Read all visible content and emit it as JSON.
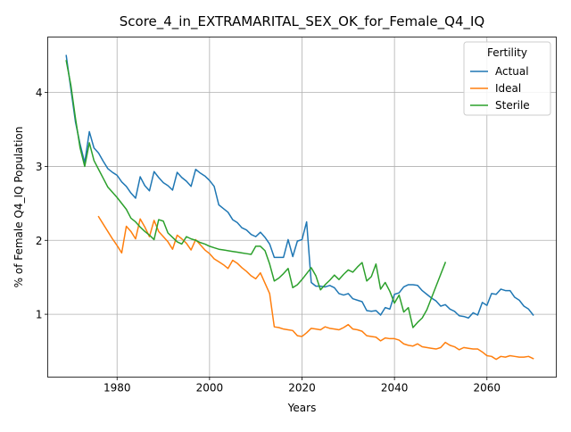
{
  "chart_data": {
    "type": "line",
    "title": "Score_4_in_EXTRAMARITAL_SEX_OK_for_Female_Q4_IQ",
    "xlabel": "Years",
    "ylabel": "% of Female Q4_IQ Population",
    "xlim": [
      1965,
      2075
    ],
    "ylim": [
      0.15,
      4.75
    ],
    "xticks": [
      1980,
      2000,
      2020,
      2040,
      2060
    ],
    "yticks": [
      1,
      2,
      3,
      4
    ],
    "grid": true,
    "legend": {
      "title": "Fertility",
      "placement": "upper right"
    },
    "series": [
      {
        "name": "Actual",
        "color": "#1f77b4",
        "points": [
          [
            1969,
            4.5
          ],
          [
            1970,
            4.05
          ],
          [
            1971,
            3.6
          ],
          [
            1972,
            3.3
          ],
          [
            1973,
            3.05
          ],
          [
            1974,
            3.47
          ],
          [
            1975,
            3.25
          ],
          [
            1976,
            3.18
          ],
          [
            1977,
            3.07
          ],
          [
            1978,
            2.97
          ],
          [
            1979,
            2.92
          ],
          [
            1980,
            2.88
          ],
          [
            1981,
            2.79
          ],
          [
            1982,
            2.73
          ],
          [
            1983,
            2.64
          ],
          [
            1984,
            2.57
          ],
          [
            1985,
            2.86
          ],
          [
            1986,
            2.74
          ],
          [
            1987,
            2.67
          ],
          [
            1988,
            2.93
          ],
          [
            1989,
            2.85
          ],
          [
            1990,
            2.78
          ],
          [
            1991,
            2.74
          ],
          [
            1992,
            2.68
          ],
          [
            1993,
            2.92
          ],
          [
            1994,
            2.85
          ],
          [
            1995,
            2.8
          ],
          [
            1996,
            2.73
          ],
          [
            1997,
            2.96
          ],
          [
            1998,
            2.91
          ],
          [
            1999,
            2.87
          ],
          [
            2000,
            2.81
          ],
          [
            2001,
            2.73
          ],
          [
            2002,
            2.48
          ],
          [
            2003,
            2.43
          ],
          [
            2004,
            2.38
          ],
          [
            2005,
            2.28
          ],
          [
            2006,
            2.24
          ],
          [
            2007,
            2.17
          ],
          [
            2008,
            2.14
          ],
          [
            2009,
            2.08
          ],
          [
            2010,
            2.05
          ],
          [
            2011,
            2.11
          ],
          [
            2012,
            2.04
          ],
          [
            2013,
            1.95
          ],
          [
            2014,
            1.77
          ],
          [
            2015,
            1.77
          ],
          [
            2016,
            1.77
          ],
          [
            2017,
            2.01
          ],
          [
            2018,
            1.78
          ],
          [
            2019,
            1.99
          ],
          [
            2020,
            2.01
          ],
          [
            2021,
            2.25
          ],
          [
            2022,
            1.43
          ],
          [
            2023,
            1.38
          ],
          [
            2024,
            1.38
          ],
          [
            2025,
            1.37
          ],
          [
            2026,
            1.39
          ],
          [
            2027,
            1.36
          ],
          [
            2028,
            1.28
          ],
          [
            2029,
            1.26
          ],
          [
            2030,
            1.28
          ],
          [
            2031,
            1.21
          ],
          [
            2032,
            1.19
          ],
          [
            2033,
            1.17
          ],
          [
            2034,
            1.05
          ],
          [
            2035,
            1.04
          ],
          [
            2036,
            1.05
          ],
          [
            2037,
            0.99
          ],
          [
            2038,
            1.09
          ],
          [
            2039,
            1.07
          ],
          [
            2040,
            1.27
          ],
          [
            2041,
            1.29
          ],
          [
            2042,
            1.37
          ],
          [
            2043,
            1.4
          ],
          [
            2044,
            1.4
          ],
          [
            2045,
            1.39
          ],
          [
            2046,
            1.32
          ],
          [
            2047,
            1.27
          ],
          [
            2048,
            1.22
          ],
          [
            2049,
            1.18
          ],
          [
            2050,
            1.11
          ],
          [
            2051,
            1.13
          ],
          [
            2052,
            1.07
          ],
          [
            2053,
            1.04
          ],
          [
            2054,
            0.98
          ],
          [
            2055,
            0.97
          ],
          [
            2056,
            0.95
          ],
          [
            2057,
            1.02
          ],
          [
            2058,
            0.99
          ],
          [
            2059,
            1.16
          ],
          [
            2060,
            1.12
          ],
          [
            2061,
            1.28
          ],
          [
            2062,
            1.27
          ],
          [
            2063,
            1.34
          ],
          [
            2064,
            1.32
          ],
          [
            2065,
            1.32
          ],
          [
            2066,
            1.23
          ],
          [
            2067,
            1.19
          ],
          [
            2068,
            1.11
          ],
          [
            2069,
            1.07
          ],
          [
            2070,
            0.99
          ]
        ]
      },
      {
        "name": "Ideal",
        "color": "#ff7f0e",
        "points": [
          [
            1976,
            2.32
          ],
          [
            1977,
            2.22
          ],
          [
            1978,
            2.12
          ],
          [
            1979,
            2.02
          ],
          [
            1980,
            1.93
          ],
          [
            1981,
            1.83
          ],
          [
            1982,
            2.19
          ],
          [
            1983,
            2.12
          ],
          [
            1984,
            2.02
          ],
          [
            1985,
            2.29
          ],
          [
            1986,
            2.18
          ],
          [
            1987,
            2.05
          ],
          [
            1988,
            2.27
          ],
          [
            1989,
            2.12
          ],
          [
            1990,
            2.05
          ],
          [
            1991,
            1.98
          ],
          [
            1992,
            1.88
          ],
          [
            1993,
            2.07
          ],
          [
            1994,
            2.02
          ],
          [
            1995,
            1.96
          ],
          [
            1996,
            1.87
          ],
          [
            1997,
            2.01
          ],
          [
            1998,
            1.94
          ],
          [
            1999,
            1.87
          ],
          [
            2000,
            1.82
          ],
          [
            2001,
            1.75
          ],
          [
            2002,
            1.71
          ],
          [
            2003,
            1.67
          ],
          [
            2004,
            1.62
          ],
          [
            2005,
            1.73
          ],
          [
            2006,
            1.69
          ],
          [
            2007,
            1.63
          ],
          [
            2008,
            1.58
          ],
          [
            2009,
            1.52
          ],
          [
            2010,
            1.48
          ],
          [
            2011,
            1.56
          ],
          [
            2012,
            1.42
          ],
          [
            2013,
            1.28
          ],
          [
            2014,
            0.83
          ],
          [
            2015,
            0.82
          ],
          [
            2016,
            0.8
          ],
          [
            2017,
            0.79
          ],
          [
            2018,
            0.78
          ],
          [
            2019,
            0.71
          ],
          [
            2020,
            0.7
          ],
          [
            2021,
            0.75
          ],
          [
            2022,
            0.81
          ],
          [
            2023,
            0.8
          ],
          [
            2024,
            0.79
          ],
          [
            2025,
            0.83
          ],
          [
            2026,
            0.81
          ],
          [
            2027,
            0.8
          ],
          [
            2028,
            0.79
          ],
          [
            2029,
            0.82
          ],
          [
            2030,
            0.86
          ],
          [
            2031,
            0.8
          ],
          [
            2032,
            0.79
          ],
          [
            2033,
            0.77
          ],
          [
            2034,
            0.71
          ],
          [
            2035,
            0.7
          ],
          [
            2036,
            0.69
          ],
          [
            2037,
            0.64
          ],
          [
            2038,
            0.68
          ],
          [
            2039,
            0.67
          ],
          [
            2040,
            0.67
          ],
          [
            2041,
            0.65
          ],
          [
            2042,
            0.6
          ],
          [
            2043,
            0.58
          ],
          [
            2044,
            0.57
          ],
          [
            2045,
            0.6
          ],
          [
            2046,
            0.56
          ],
          [
            2047,
            0.55
          ],
          [
            2048,
            0.54
          ],
          [
            2049,
            0.53
          ],
          [
            2050,
            0.55
          ],
          [
            2051,
            0.62
          ],
          [
            2052,
            0.58
          ],
          [
            2053,
            0.56
          ],
          [
            2054,
            0.52
          ],
          [
            2055,
            0.55
          ],
          [
            2056,
            0.54
          ],
          [
            2057,
            0.53
          ],
          [
            2058,
            0.53
          ],
          [
            2059,
            0.49
          ],
          [
            2060,
            0.44
          ],
          [
            2061,
            0.43
          ],
          [
            2062,
            0.39
          ],
          [
            2063,
            0.43
          ],
          [
            2064,
            0.42
          ],
          [
            2065,
            0.44
          ],
          [
            2066,
            0.43
          ],
          [
            2067,
            0.42
          ],
          [
            2068,
            0.42
          ],
          [
            2069,
            0.43
          ],
          [
            2070,
            0.4
          ]
        ]
      },
      {
        "name": "Sterile",
        "color": "#2ca02c",
        "points": [
          [
            1969,
            4.43
          ],
          [
            1970,
            4.1
          ],
          [
            1971,
            3.65
          ],
          [
            1972,
            3.25
          ],
          [
            1973,
            3.0
          ],
          [
            1974,
            3.32
          ],
          [
            1975,
            3.08
          ],
          [
            1976,
            2.96
          ],
          [
            1977,
            2.84
          ],
          [
            1978,
            2.72
          ],
          [
            1979,
            2.65
          ],
          [
            1980,
            2.58
          ],
          [
            1981,
            2.5
          ],
          [
            1982,
            2.42
          ],
          [
            1983,
            2.3
          ],
          [
            1984,
            2.25
          ],
          [
            1985,
            2.18
          ],
          [
            1986,
            2.12
          ],
          [
            1987,
            2.07
          ],
          [
            1988,
            2.01
          ],
          [
            1989,
            2.28
          ],
          [
            1990,
            2.26
          ],
          [
            1991,
            2.1
          ],
          [
            1992,
            2.04
          ],
          [
            1993,
            1.98
          ],
          [
            1994,
            1.95
          ],
          [
            1995,
            2.05
          ],
          [
            1996,
            2.02
          ],
          [
            1997,
            2.0
          ],
          [
            1998,
            1.97
          ],
          [
            1999,
            1.95
          ],
          [
            2000,
            1.92
          ],
          [
            2001,
            1.9
          ],
          [
            2002,
            1.88
          ],
          [
            2003,
            1.87
          ],
          [
            2004,
            1.86
          ],
          [
            2005,
            1.85
          ],
          [
            2006,
            1.84
          ],
          [
            2007,
            1.83
          ],
          [
            2008,
            1.82
          ],
          [
            2009,
            1.81
          ],
          [
            2010,
            1.92
          ],
          [
            2011,
            1.92
          ],
          [
            2012,
            1.86
          ],
          [
            2013,
            1.68
          ],
          [
            2014,
            1.45
          ],
          [
            2015,
            1.49
          ],
          [
            2016,
            1.55
          ],
          [
            2017,
            1.62
          ],
          [
            2018,
            1.36
          ],
          [
            2019,
            1.4
          ],
          [
            2020,
            1.47
          ],
          [
            2021,
            1.55
          ],
          [
            2022,
            1.63
          ],
          [
            2023,
            1.52
          ],
          [
            2024,
            1.33
          ],
          [
            2025,
            1.4
          ],
          [
            2026,
            1.46
          ],
          [
            2027,
            1.53
          ],
          [
            2028,
            1.47
          ],
          [
            2029,
            1.54
          ],
          [
            2030,
            1.6
          ],
          [
            2031,
            1.57
          ],
          [
            2032,
            1.64
          ],
          [
            2033,
            1.7
          ],
          [
            2034,
            1.45
          ],
          [
            2035,
            1.51
          ],
          [
            2036,
            1.68
          ],
          [
            2037,
            1.34
          ],
          [
            2038,
            1.43
          ],
          [
            2039,
            1.31
          ],
          [
            2040,
            1.15
          ],
          [
            2041,
            1.26
          ],
          [
            2042,
            1.03
          ],
          [
            2043,
            1.09
          ],
          [
            2044,
            0.82
          ],
          [
            2045,
            0.89
          ],
          [
            2046,
            0.95
          ],
          [
            2047,
            1.06
          ],
          [
            2048,
            1.22
          ],
          [
            2049,
            1.38
          ],
          [
            2050,
            1.54
          ],
          [
            2051,
            1.7
          ]
        ]
      }
    ]
  }
}
